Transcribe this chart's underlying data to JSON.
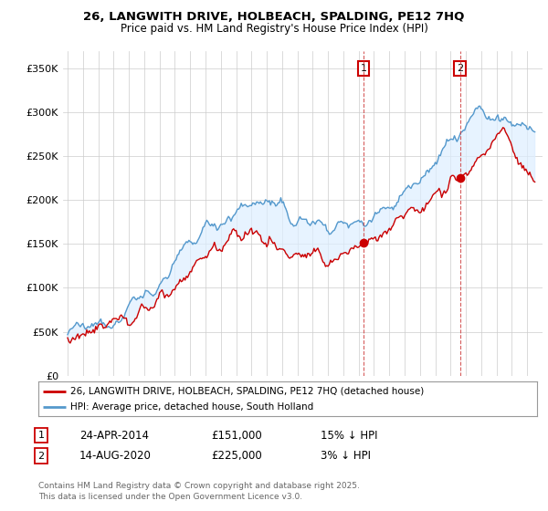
{
  "title": "26, LANGWITH DRIVE, HOLBEACH, SPALDING, PE12 7HQ",
  "subtitle": "Price paid vs. HM Land Registry's House Price Index (HPI)",
  "ylim": [
    0,
    370000
  ],
  "yticks": [
    0,
    50000,
    100000,
    150000,
    200000,
    250000,
    300000,
    350000
  ],
  "ytick_labels": [
    "£0",
    "£50K",
    "£100K",
    "£150K",
    "£200K",
    "£250K",
    "£300K",
    "£350K"
  ],
  "property_color": "#cc0000",
  "hpi_color": "#5599cc",
  "hpi_fill_color": "#ddeeff",
  "marker1_date": 2014.32,
  "marker2_date": 2020.62,
  "marker1_value": 151000,
  "marker2_value": 225000,
  "legend_property": "26, LANGWITH DRIVE, HOLBEACH, SPALDING, PE12 7HQ (detached house)",
  "legend_hpi": "HPI: Average price, detached house, South Holland",
  "table_row1": [
    "1",
    "24-APR-2014",
    "£151,000",
    "15% ↓ HPI"
  ],
  "table_row2": [
    "2",
    "14-AUG-2020",
    "£225,000",
    "3% ↓ HPI"
  ],
  "footer": "Contains HM Land Registry data © Crown copyright and database right 2025.\nThis data is licensed under the Open Government Licence v3.0.",
  "background_color": "#ffffff",
  "grid_color": "#cccccc"
}
